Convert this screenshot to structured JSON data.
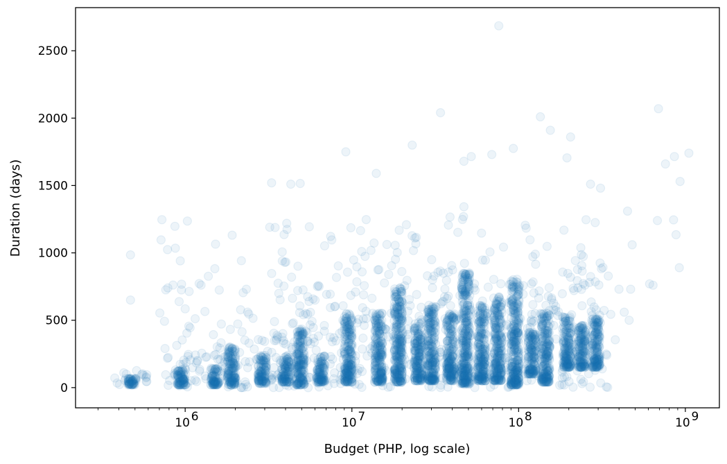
{
  "chart_data": {
    "type": "scatter",
    "xlabel": "Budget (PHP, log scale)",
    "ylabel": "Duration (days)",
    "x_scale": "log",
    "xlim": [
      220000,
      1600000000
    ],
    "ylim": [
      -150,
      2820
    ],
    "x_ticks": [
      {
        "value": 1000000,
        "label": "10",
        "exp": "6"
      },
      {
        "value": 10000000,
        "label": "10",
        "exp": "7"
      },
      {
        "value": 100000000,
        "label": "10",
        "exp": "8"
      },
      {
        "value": 1000000000,
        "label": "10",
        "exp": "9"
      }
    ],
    "y_ticks": [
      {
        "value": 0,
        "label": "0"
      },
      {
        "value": 500,
        "label": "500"
      },
      {
        "value": 1000,
        "label": "1000"
      },
      {
        "value": 1500,
        "label": "1500"
      },
      {
        "value": 2000,
        "label": "2000"
      },
      {
        "value": 2500,
        "label": "2500"
      }
    ],
    "grid": false,
    "legend": "none",
    "marker_color": "#1f77b4",
    "marker_alpha": 0.08,
    "clusters": [
      {
        "x": 480000,
        "y_min": 20,
        "y_max": 60
      },
      {
        "x": 950000,
        "y_min": 20,
        "y_max": 120
      },
      {
        "x": 1500000,
        "y_min": 20,
        "y_max": 120
      },
      {
        "x": 1900000,
        "y_min": 20,
        "y_max": 250
      },
      {
        "x": 2900000,
        "y_min": 30,
        "y_max": 200
      },
      {
        "x": 4000000,
        "y_min": 40,
        "y_max": 200
      },
      {
        "x": 4900000,
        "y_min": 20,
        "y_max": 350
      },
      {
        "x": 6500000,
        "y_min": 40,
        "y_max": 200
      },
      {
        "x": 9500000,
        "y_min": 40,
        "y_max": 450
      },
      {
        "x": 14500000,
        "y_min": 40,
        "y_max": 450
      },
      {
        "x": 19000000,
        "y_min": 40,
        "y_max": 600
      },
      {
        "x": 25000000,
        "y_min": 50,
        "y_max": 400
      },
      {
        "x": 30000000,
        "y_min": 50,
        "y_max": 500
      },
      {
        "x": 39000000,
        "y_min": 50,
        "y_max": 450
      },
      {
        "x": 48000000,
        "y_min": 30,
        "y_max": 700
      },
      {
        "x": 60000000,
        "y_min": 50,
        "y_max": 500
      },
      {
        "x": 75000000,
        "y_min": 50,
        "y_max": 550
      },
      {
        "x": 95000000,
        "y_min": 20,
        "y_max": 650
      },
      {
        "x": 120000000,
        "y_min": 100,
        "y_max": 350
      },
      {
        "x": 145000000,
        "y_min": 40,
        "y_max": 450
      },
      {
        "x": 195000000,
        "y_min": 150,
        "y_max": 450
      },
      {
        "x": 240000000,
        "y_min": 150,
        "y_max": 400
      },
      {
        "x": 290000000,
        "y_min": 150,
        "y_max": 450
      }
    ],
    "notable_points": [
      {
        "x": 470000,
        "y": 985
      },
      {
        "x": 470000,
        "y": 650
      },
      {
        "x": 950000,
        "y": 725
      },
      {
        "x": 3300000,
        "y": 1520
      },
      {
        "x": 4300000,
        "y": 1510
      },
      {
        "x": 4900000,
        "y": 1515
      },
      {
        "x": 9200000,
        "y": 1750
      },
      {
        "x": 14000000,
        "y": 1590
      },
      {
        "x": 23000000,
        "y": 1800
      },
      {
        "x": 34000000,
        "y": 2040
      },
      {
        "x": 47000000,
        "y": 1680
      },
      {
        "x": 52000000,
        "y": 1715
      },
      {
        "x": 69000000,
        "y": 1730
      },
      {
        "x": 76000000,
        "y": 2685
      },
      {
        "x": 93000000,
        "y": 1775
      },
      {
        "x": 135000000,
        "y": 2010
      },
      {
        "x": 155000000,
        "y": 1910
      },
      {
        "x": 205000000,
        "y": 1860
      },
      {
        "x": 195000000,
        "y": 1705
      },
      {
        "x": 270000000,
        "y": 1510
      },
      {
        "x": 310000000,
        "y": 1480
      },
      {
        "x": 690000000,
        "y": 2070
      },
      {
        "x": 760000000,
        "y": 1660
      },
      {
        "x": 860000000,
        "y": 1715
      },
      {
        "x": 1050000000,
        "y": 1740
      },
      {
        "x": 930000000,
        "y": 1530
      },
      {
        "x": 850000000,
        "y": 1245
      },
      {
        "x": 680000000,
        "y": 1240
      },
      {
        "x": 880000000,
        "y": 1135
      },
      {
        "x": 920000000,
        "y": 890
      },
      {
        "x": 450000000,
        "y": 1310
      },
      {
        "x": 480000000,
        "y": 1060
      },
      {
        "x": 610000000,
        "y": 770
      },
      {
        "x": 640000000,
        "y": 760
      },
      {
        "x": 470000000,
        "y": 730
      },
      {
        "x": 400000000,
        "y": 730
      },
      {
        "x": 430000000,
        "y": 560
      },
      {
        "x": 460000000,
        "y": 500
      },
      {
        "x": 380000000,
        "y": 355
      }
    ]
  }
}
